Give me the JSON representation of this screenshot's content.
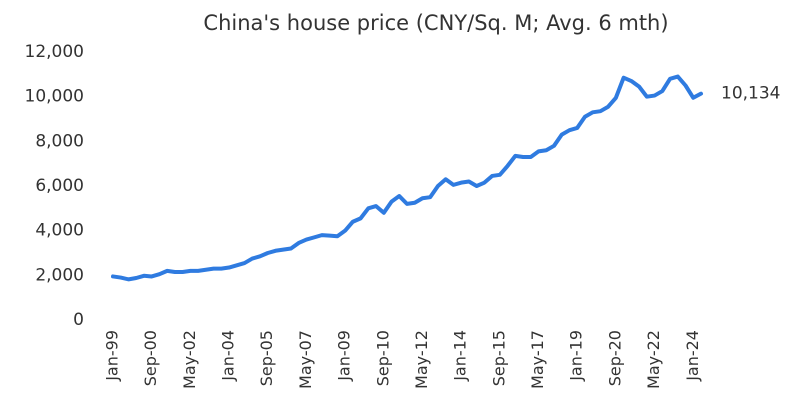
{
  "chart_data": {
    "type": "line",
    "title": "China's house price (CNY/Sq. M; Avg. 6 mth)",
    "categories": [
      "Jan-99",
      null,
      null,
      null,
      null,
      "Sep-00",
      null,
      null,
      null,
      null,
      "May-02",
      null,
      null,
      null,
      null,
      "Jan-04",
      null,
      null,
      null,
      null,
      "Sep-05",
      null,
      null,
      null,
      null,
      "May-07",
      null,
      null,
      null,
      null,
      "Jan-09",
      null,
      null,
      null,
      null,
      "Sep-10",
      null,
      null,
      null,
      null,
      "May-12",
      null,
      null,
      null,
      null,
      "Jan-14",
      null,
      null,
      null,
      null,
      "Sep-15",
      null,
      null,
      null,
      null,
      "May-17",
      null,
      null,
      null,
      null,
      "Jan-19",
      null,
      null,
      null,
      null,
      "Sep-20",
      null,
      null,
      null,
      null,
      "May-22",
      null,
      null,
      null,
      null,
      "Jan-24",
      null
    ],
    "series": [
      {
        "color": "#2f7be0",
        "values": [
          1950,
          1900,
          1820,
          1880,
          1980,
          1950,
          2050,
          2200,
          2150,
          2150,
          2200,
          2200,
          2250,
          2300,
          2300,
          2350,
          2450,
          2550,
          2750,
          2850,
          3000,
          3100,
          3150,
          3200,
          3450,
          3600,
          3700,
          3800,
          3780,
          3750,
          4000,
          4400,
          4550,
          5000,
          5100,
          4800,
          5300,
          5550,
          5200,
          5250,
          5450,
          5500,
          6000,
          6300,
          6050,
          6150,
          6200,
          6000,
          6150,
          6450,
          6500,
          6900,
          7350,
          7300,
          7300,
          7550,
          7600,
          7800,
          8300,
          8500,
          8600,
          9100,
          9300,
          9350,
          9550,
          9950,
          10850,
          10700,
          10450,
          10000,
          10050,
          10250,
          10800,
          10900,
          10500,
          9950,
          10134
        ],
        "value_labels": [
          null,
          null,
          null,
          null,
          null,
          null,
          null,
          null,
          null,
          null,
          null,
          null,
          null,
          null,
          null,
          null,
          null,
          null,
          null,
          null,
          null,
          null,
          null,
          null,
          null,
          null,
          null,
          null,
          null,
          null,
          null,
          null,
          null,
          null,
          null,
          null,
          null,
          null,
          null,
          null,
          null,
          null,
          null,
          null,
          null,
          null,
          null,
          null,
          null,
          null,
          null,
          null,
          null,
          null,
          null,
          null,
          null,
          null,
          null,
          null,
          null,
          null,
          null,
          null,
          null,
          null,
          null,
          null,
          null,
          null,
          null,
          null,
          null,
          null,
          null,
          null,
          "10,134"
        ]
      }
    ],
    "ylim": [
      0,
      12000
    ],
    "yticks": [
      0,
      {
        "value": 2000,
        "label": "2,000"
      },
      {
        "value": 4000,
        "label": "4,000"
      },
      {
        "value": 6000,
        "label": "6,000"
      },
      {
        "value": 8000,
        "label": "8,000"
      },
      {
        "value": 10000,
        "label": "10,000"
      },
      {
        "value": 12000,
        "label": "12,000"
      }
    ],
    "grid": false
  }
}
